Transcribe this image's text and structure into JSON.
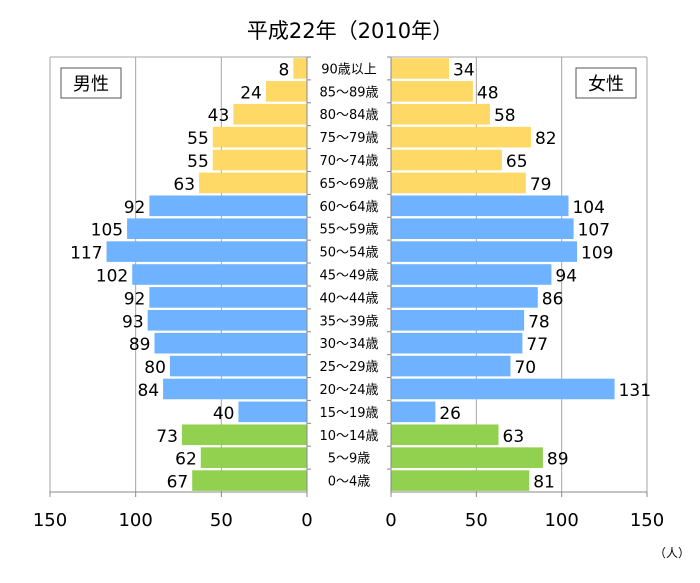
{
  "chart_data": {
    "type": "bar",
    "title": "平成22年（2010年）",
    "unit_label": "（人）",
    "legend": {
      "male": "男性",
      "female": "女性"
    },
    "categories": [
      "90歳以上",
      "85〜89歳",
      "80〜84歳",
      "75〜79歳",
      "70〜74歳",
      "65〜69歳",
      "60〜64歳",
      "55〜59歳",
      "50〜54歳",
      "45〜49歳",
      "40〜44歳",
      "35〜39歳",
      "30〜34歳",
      "25〜29歳",
      "20〜24歳",
      "15〜19歳",
      "10〜14歳",
      "5〜9歳",
      "0〜4歳"
    ],
    "series": [
      {
        "name": "男性",
        "values": [
          8,
          24,
          43,
          55,
          55,
          63,
          92,
          105,
          117,
          102,
          92,
          93,
          89,
          80,
          84,
          40,
          73,
          62,
          67
        ]
      },
      {
        "name": "女性",
        "values": [
          34,
          48,
          58,
          82,
          65,
          79,
          104,
          107,
          109,
          94,
          86,
          78,
          77,
          70,
          131,
          26,
          63,
          89,
          81
        ]
      }
    ],
    "groups": [
      {
        "color": "#FFD966",
        "count": 6
      },
      {
        "color": "#6FB2FF",
        "count": 10
      },
      {
        "color": "#92D050",
        "count": 3
      }
    ],
    "x_ticks_left": [
      "150",
      "100",
      "50",
      "0"
    ],
    "x_ticks_right": [
      "0",
      "50",
      "100",
      "150"
    ],
    "xlim": [
      0,
      150
    ],
    "grid": true
  }
}
